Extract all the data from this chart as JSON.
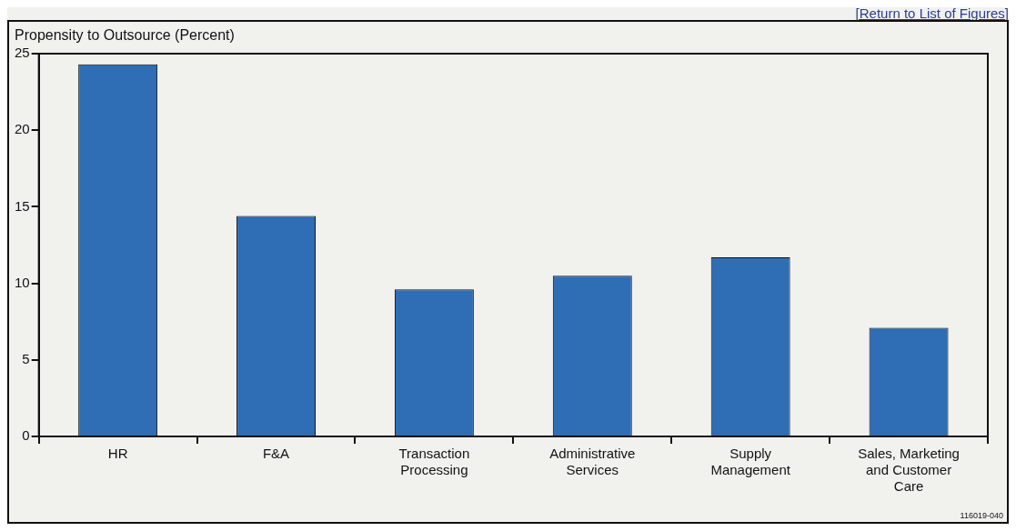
{
  "chart_data": {
    "type": "bar",
    "ylabel": "Propensity to Outsource (Percent)",
    "categories": [
      "HR",
      "F&A",
      "Transaction Processing",
      "Administrative Services",
      "Supply Management",
      "Sales, Marketing and Customer Care"
    ],
    "values": [
      24.3,
      14.4,
      9.6,
      10.5,
      11.7,
      7.1
    ],
    "color": "#2f6db5",
    "ylim": [
      0,
      25
    ],
    "yticks": [
      0,
      5,
      10,
      15,
      20,
      25
    ],
    "grid": false,
    "legend": false,
    "annotations": [
      "[Return to List of Figures]",
      "116019-040"
    ]
  }
}
